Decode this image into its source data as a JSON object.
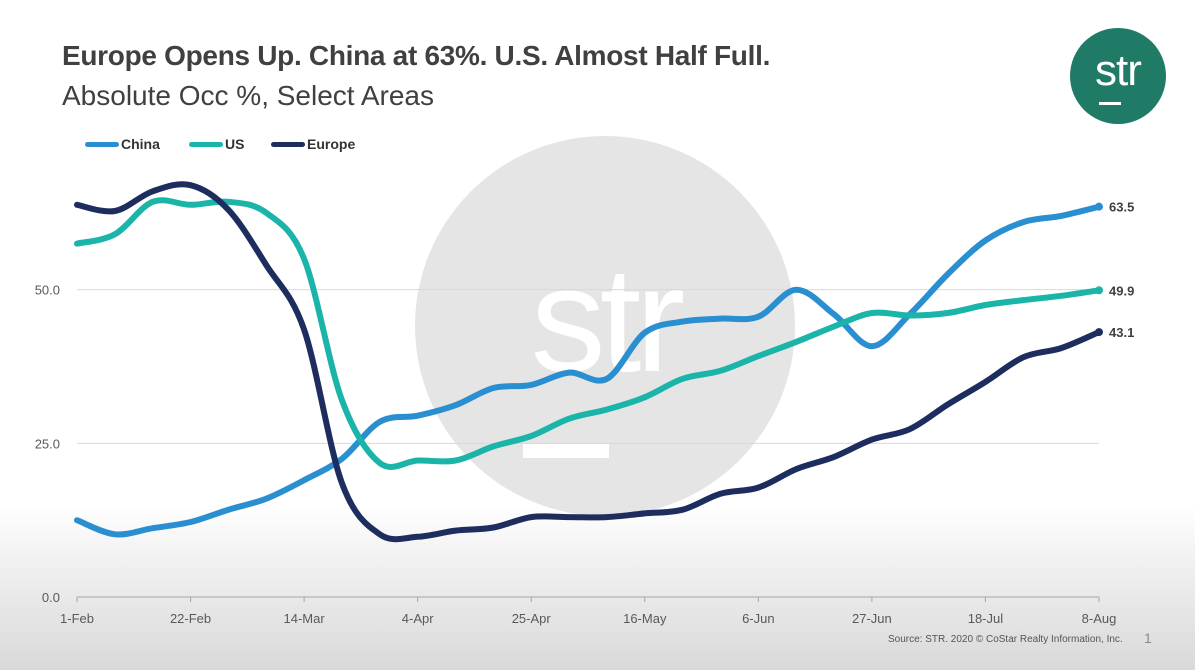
{
  "slide": {
    "title": "Europe Opens Up. China at 63%.  U.S. Almost Half Full.",
    "subtitle": "Absolute Occ %, Select Areas",
    "logo_text": "str",
    "watermark_text": "str",
    "source": "Source: STR. 2020 © CoStar Realty Information, Inc.",
    "page_number": "1"
  },
  "chart_data": {
    "type": "line",
    "title": "Europe Opens Up. China at 63%.  U.S. Almost Half Full.",
    "subtitle": "Absolute Occ %, Select Areas",
    "xlabel": "",
    "ylabel": "",
    "ylim": [
      0,
      75
    ],
    "yticks": [
      0,
      25,
      50
    ],
    "ytick_labels": [
      "0.0",
      "25.0",
      "50.0"
    ],
    "x_tick_labels": [
      "1-Feb",
      "22-Feb",
      "14-Mar",
      "4-Apr",
      "25-Apr",
      "16-May",
      "6-Jun",
      "27-Jun",
      "18-Jul",
      "8-Aug"
    ],
    "x_tick_every": 3,
    "grid": true,
    "legend_position": "top-left",
    "series": [
      {
        "name": "China",
        "color": "#2a8fd1",
        "end_label": "63.5",
        "values": [
          12.5,
          10.2,
          11.2,
          12.2,
          14.2,
          16,
          19,
          22.5,
          28.5,
          29.5,
          31.2,
          34,
          34.5,
          36.5,
          35.5,
          43,
          44.8,
          45.3,
          45.6,
          50,
          46,
          40.8,
          46,
          52.5,
          58,
          61,
          62,
          63.5
        ]
      },
      {
        "name": "US",
        "color": "#1bb4a9",
        "end_label": "49.9",
        "values": [
          57.5,
          59,
          64.3,
          63.8,
          64.3,
          62.5,
          55,
          32,
          21.8,
          22.2,
          22.2,
          24.5,
          26.2,
          29,
          30.5,
          32.5,
          35.5,
          36.8,
          39.2,
          41.5,
          44,
          46.2,
          45.8,
          46.2,
          47.5,
          48.3,
          49,
          49.9
        ]
      },
      {
        "name": "Europe",
        "color": "#1c2d5e",
        "end_label": "43.1",
        "values": [
          63.8,
          62.8,
          66,
          67,
          63,
          54,
          43.5,
          18.5,
          10.2,
          9.8,
          10.8,
          11.3,
          13,
          13,
          13,
          13.6,
          14.2,
          16.8,
          17.8,
          20.8,
          22.8,
          25.6,
          27.3,
          31.3,
          35,
          39,
          40.5,
          43.1
        ]
      }
    ]
  }
}
